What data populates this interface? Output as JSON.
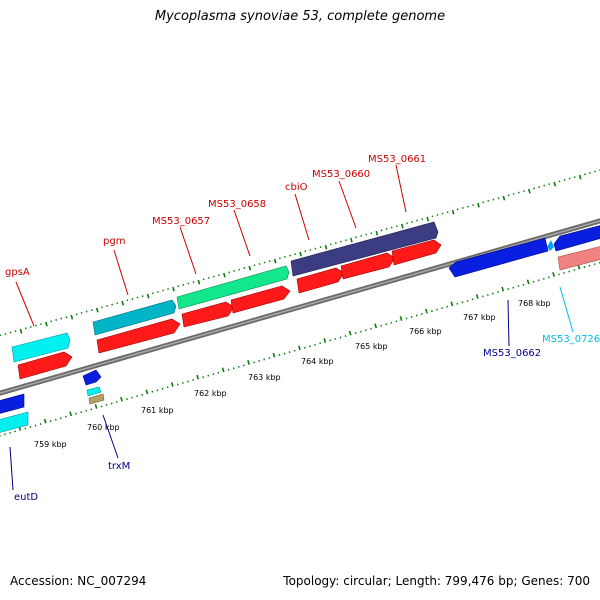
{
  "title": "Mycoplasma synoviae 53, complete genome",
  "footer": {
    "accession": "Accession: NC_007294",
    "info": "Topology: circular; Length: 799,476 bp; Genes: 700"
  },
  "colors": {
    "backbone": "#7f7f7f",
    "tick_dots": "#0b7d0b",
    "label_red": "#cc0000",
    "label_navy": "#00008b",
    "label_cyan": "#00bfe0",
    "forward_cds": "#ff1a1a",
    "reverse_cds": "#0a1ee0",
    "cyan_gene": "#00f0f0",
    "teal_gene": "#00b4c8",
    "green_gene": "#14e68c",
    "purple_gene": "#3c3c82",
    "salmon_gene": "#f08282",
    "tan_gene": "#b4a064"
  },
  "scale_labels": [
    "759 kbp",
    "760 kbp",
    "761 kbp",
    "762 kbp",
    "763 kbp",
    "764 kbp",
    "765 kbp",
    "766 kbp",
    "767 kbp",
    "768 kbp"
  ],
  "gene_labels": {
    "gpsA": "gpsA",
    "pgm": "pgm",
    "MS53_0657": "MS53_0657",
    "MS53_0658": "MS53_0658",
    "cbiO": "cbiO",
    "MS53_0660": "MS53_0660",
    "MS53_0661": "MS53_0661",
    "MS53_0662": "MS53_0662",
    "MS53_0726": "MS53_0726",
    "trxM": "trxM",
    "eutD": "eutD"
  }
}
